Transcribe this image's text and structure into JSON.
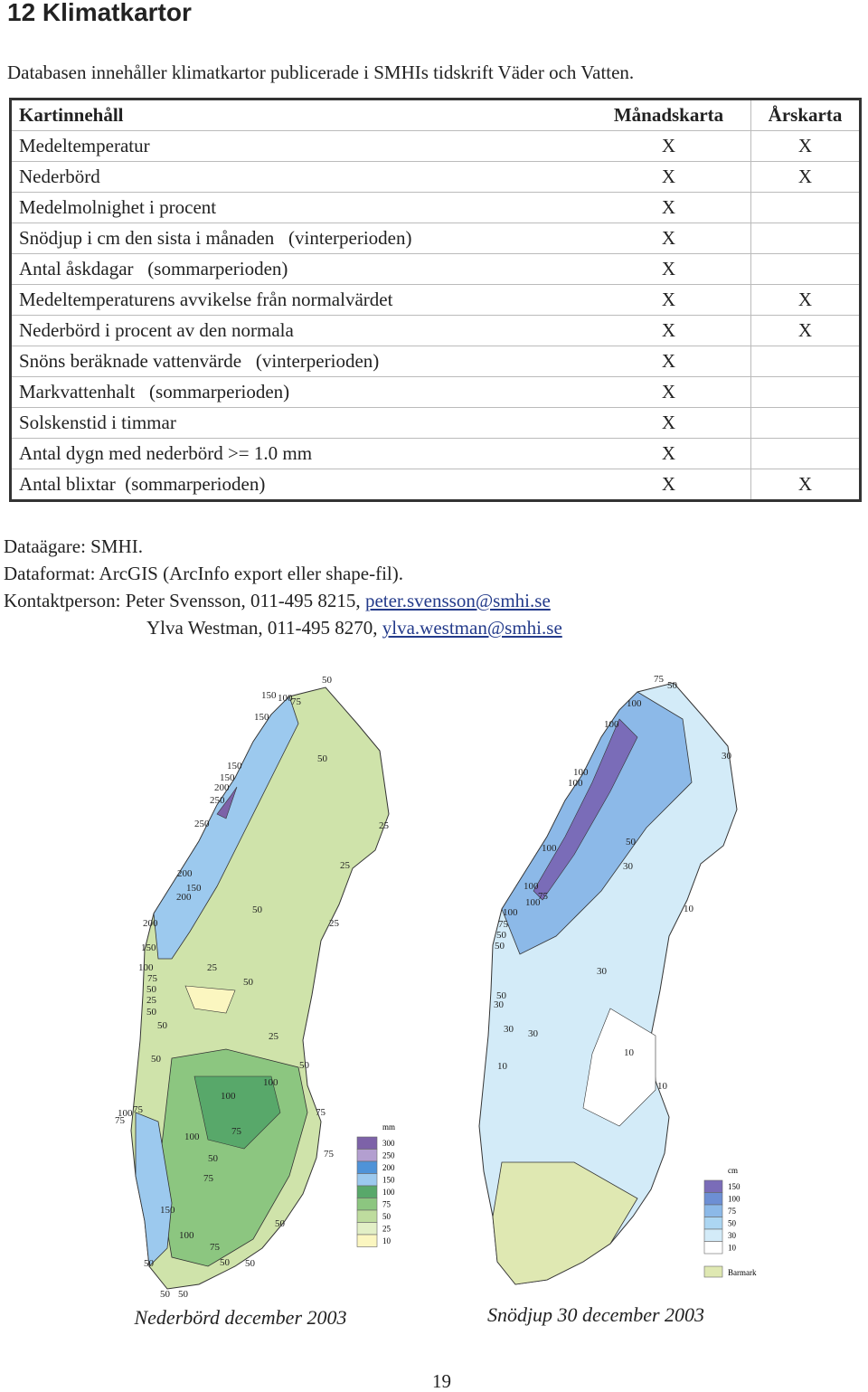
{
  "header": {
    "title": "12 Klimatkartor",
    "intro": "Databasen innehåller klimatkartor publicerade i SMHIs tidskrift Väder och Vatten."
  },
  "table": {
    "columns": [
      "Kartinnehåll",
      "Månadskarta",
      "Årskarta"
    ],
    "rows": [
      [
        "Medeltemperatur",
        "X",
        "X"
      ],
      [
        "Nederbörd",
        "X",
        "X"
      ],
      [
        "Medelmolnighet i procent",
        "X",
        null
      ],
      [
        "Snödjup i cm den sista i månaden   (vinterperioden)",
        "X",
        null
      ],
      [
        "Antal åskdagar   (sommarperioden)",
        "X",
        null
      ],
      [
        "Medeltemperaturens avvikelse från normalvärdet",
        "X",
        "X"
      ],
      [
        "Nederbörd i procent av den normala",
        "X",
        "X"
      ],
      [
        "Snöns beräknade vattenvärde   (vinterperioden)",
        "X",
        null
      ],
      [
        "Markvattenhalt   (sommarperioden)",
        "X",
        null
      ],
      [
        "Solskenstid i timmar",
        "X",
        null
      ],
      [
        "Antal dygn med nederbörd >= 1.0 mm",
        "X",
        null
      ],
      [
        "Antal blixtar  (sommarperioden)",
        "X",
        "X"
      ]
    ]
  },
  "info": {
    "owner": "Dataägare: SMHI.",
    "format": "Dataformat: ArcGIS (ArcInfo export eller shape-fil).",
    "contacts": [
      {
        "text": "Kontaktperson: Peter Svensson, 011-495 8215,",
        "email": "peter.svensson@smhi.se"
      },
      {
        "text": "Ylva Westman, 011-495 8270,",
        "email": "ylva.westman@smhi.se"
      }
    ]
  },
  "maps": [
    {
      "caption": "Nederbörd december 2003",
      "legend_unit": "mm",
      "legend": [
        {
          "label": "300",
          "color": "#7d62a8"
        },
        {
          "label": "250",
          "color": "#b39fd0"
        },
        {
          "label": "200",
          "color": "#4f93d8"
        },
        {
          "label": "150",
          "color": "#9cc9ee"
        },
        {
          "label": "100",
          "color": "#58a86a"
        },
        {
          "label": "75",
          "color": "#8cc680"
        },
        {
          "label": "50",
          "color": "#bedc9e"
        },
        {
          "label": "25",
          "color": "#e2efc6"
        },
        {
          "label": "10",
          "color": "#fbf6c0"
        }
      ],
      "contour_labels": [
        "50",
        "150",
        "100",
        "75",
        "150",
        "50",
        "150",
        "150",
        "200",
        "250",
        "250",
        "25",
        "25",
        "200",
        "150",
        "200",
        "50",
        "25",
        "200",
        "150",
        "100",
        "75",
        "25",
        "50",
        "50",
        "25",
        "50",
        "50",
        "25",
        "50",
        "50",
        "100",
        "100",
        "75",
        "100",
        "75",
        "75",
        "100",
        "75",
        "50",
        "75",
        "75",
        "150",
        "50",
        "100",
        "75",
        "50",
        "50",
        "50",
        "50",
        "50"
      ]
    },
    {
      "caption": "Snödjup 30 december 2003",
      "legend_unit": "cm",
      "legend": [
        {
          "label": "150",
          "color": "#7a6cb8"
        },
        {
          "label": "100",
          "color": "#6d8fd4"
        },
        {
          "label": "75",
          "color": "#8cb9e8"
        },
        {
          "label": "50",
          "color": "#acd6f2"
        },
        {
          "label": "30",
          "color": "#d3ebf8"
        },
        {
          "label": "10",
          "color": "#ffffff"
        }
      ],
      "bare_ground": {
        "label": "Barmark",
        "color": "#dfe8b2"
      },
      "contour_labels": [
        "75",
        "50",
        "100",
        "100",
        "30",
        "100",
        "100",
        "100",
        "50",
        "30",
        "100",
        "75",
        "100",
        "100",
        "10",
        "75",
        "50",
        "50",
        "30",
        "50",
        "30",
        "30",
        "30",
        "10",
        "10",
        "10"
      ]
    }
  ],
  "page_number": "19"
}
